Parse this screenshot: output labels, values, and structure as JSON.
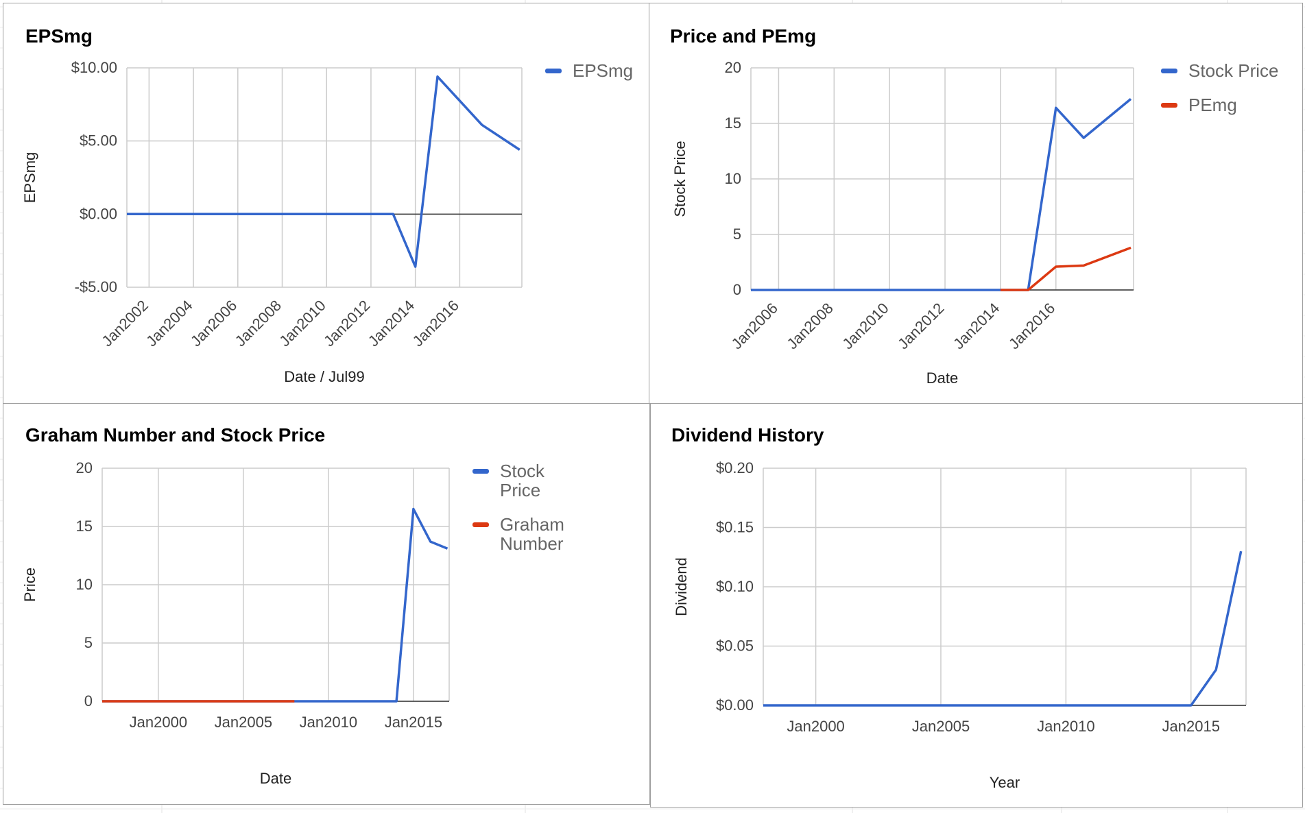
{
  "colors": {
    "series_blue": "#3366cc",
    "series_red": "#dc3912",
    "grid": "#cccccc",
    "baseline": "#333333",
    "tick_text": "#444444",
    "panel_border": "#9e9e9e"
  },
  "chart_data": [
    {
      "type": "line",
      "title": "EPSmg",
      "xlabel": "Date / Jul99",
      "ylabel": "EPSmg",
      "x_axis": "date",
      "xlim": [
        2001,
        2018.8
      ],
      "ylim": [
        -5,
        10
      ],
      "y_ticks": [
        10,
        5,
        0,
        -5
      ],
      "y_tick_labels": [
        "$10.00",
        "$5.00",
        "$0.00",
        "-$5.00"
      ],
      "x_ticks": [
        2002,
        2004,
        2006,
        2008,
        2010,
        2012,
        2014,
        2016
      ],
      "x_tick_labels": [
        "Jan2002",
        "Jan2004",
        "Jan2006",
        "Jan2008",
        "Jan2010",
        "Jan2012",
        "Jan2014",
        "Jan2016"
      ],
      "x_tick_rotation": -45,
      "baseline": 0,
      "grid": true,
      "legend": "right",
      "series": [
        {
          "name": "EPSmg",
          "color": "#3366cc",
          "x": [
            2001,
            2013,
            2014,
            2015,
            2017,
            2018.7
          ],
          "values": [
            0,
            0,
            -3.6,
            9.4,
            6.1,
            4.4
          ]
        }
      ]
    },
    {
      "type": "line",
      "title": "Price and PEmg",
      "xlabel": "Date",
      "ylabel": "Stock Price",
      "x_axis": "date",
      "xlim": [
        2005,
        2018.8
      ],
      "ylim": [
        0,
        20
      ],
      "y_ticks": [
        20,
        15,
        10,
        5,
        0
      ],
      "y_tick_labels": [
        "20",
        "15",
        "10",
        "5",
        "0"
      ],
      "x_ticks": [
        2006,
        2008,
        2010,
        2012,
        2014,
        2016
      ],
      "x_tick_labels": [
        "Jan2006",
        "Jan2008",
        "Jan2010",
        "Jan2012",
        "Jan2014",
        "Jan2016"
      ],
      "x_tick_rotation": -45,
      "baseline": 0,
      "grid": true,
      "legend": "right",
      "series": [
        {
          "name": "Stock Price",
          "color": "#3366cc",
          "x": [
            2005,
            2015,
            2016,
            2017,
            2018.7
          ],
          "values": [
            0,
            0,
            16.4,
            13.7,
            17.2
          ]
        },
        {
          "name": "PEmg",
          "color": "#dc3912",
          "x": [
            2014,
            2015,
            2016,
            2017,
            2018.7
          ],
          "values": [
            0,
            0,
            2.1,
            2.2,
            3.8
          ]
        }
      ]
    },
    {
      "type": "line",
      "title": "Graham Number and Stock Price",
      "xlabel": "Date",
      "ylabel": "Price",
      "x_axis": "date",
      "xlim": [
        1996.7,
        2017.1
      ],
      "ylim": [
        0,
        20
      ],
      "y_ticks": [
        20,
        15,
        10,
        5,
        0
      ],
      "y_tick_labels": [
        "20",
        "15",
        "10",
        "5",
        "0"
      ],
      "x_ticks": [
        2000,
        2005,
        2010,
        2015
      ],
      "x_tick_labels": [
        "Jan2000",
        "Jan2005",
        "Jan2010",
        "Jan2015"
      ],
      "x_tick_rotation": 0,
      "baseline": 0,
      "grid": true,
      "legend": "right",
      "series": [
        {
          "name": "Stock Price",
          "color": "#3366cc",
          "x": [
            1996.7,
            2014,
            2015,
            2016,
            2017
          ],
          "values": [
            0,
            0,
            16.5,
            13.7,
            13.1
          ]
        },
        {
          "name": "Graham Number",
          "color": "#dc3912",
          "x": [
            1996.7,
            2008
          ],
          "values": [
            0,
            0
          ]
        }
      ]
    },
    {
      "type": "line",
      "title": "Dividend History",
      "xlabel": "Year",
      "ylabel": "Dividend",
      "x_axis": "date",
      "xlim": [
        1997.9,
        2017.2
      ],
      "ylim": [
        0,
        0.2
      ],
      "y_ticks": [
        0.2,
        0.15,
        0.1,
        0.05,
        0
      ],
      "y_tick_labels": [
        "$0.20",
        "$0.15",
        "$0.10",
        "$0.05",
        "$0.00"
      ],
      "x_ticks": [
        2000,
        2005,
        2010,
        2015
      ],
      "x_tick_labels": [
        "Jan2000",
        "Jan2005",
        "Jan2010",
        "Jan2015"
      ],
      "x_tick_rotation": 0,
      "baseline": 0,
      "grid": true,
      "legend": "none",
      "series": [
        {
          "name": "",
          "color": "#3366cc",
          "x": [
            1997.9,
            2015,
            2016,
            2017
          ],
          "values": [
            0,
            0,
            0.03,
            0.13
          ]
        }
      ]
    }
  ]
}
